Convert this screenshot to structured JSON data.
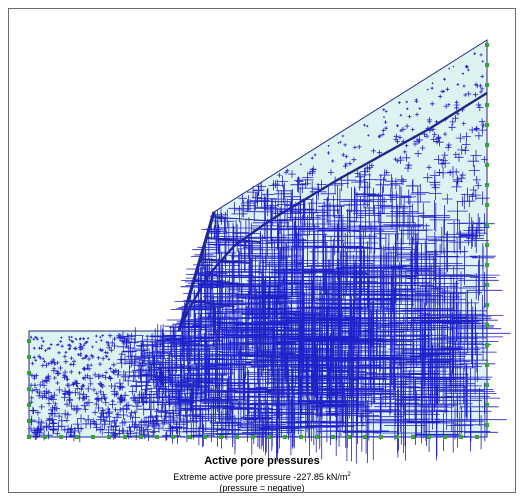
{
  "window": {
    "colors": {
      "soil_fill": "#dff2f2",
      "outline": "#1c2a80",
      "cross": "#1f22c8",
      "node": "#3aa03a"
    }
  },
  "plot": {
    "legend": {
      "title": "Active pore pressures",
      "extreme_prefix": "Extreme active pore pressure",
      "extreme_value": "-227.85",
      "unit": "kN/m",
      "unit_exp": "2",
      "note": "(pressure = negative)"
    }
  }
}
